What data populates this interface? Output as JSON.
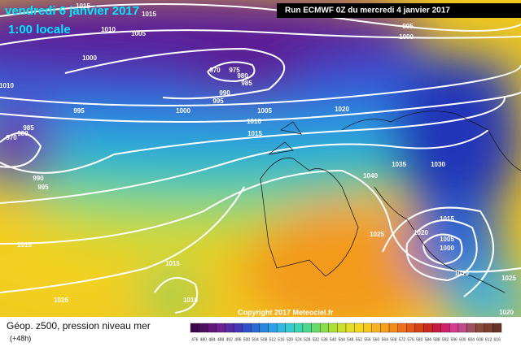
{
  "header": {
    "valid_date": "vendredi 6 janvier 2017",
    "local_time": "1:00 locale",
    "run": "Run ECMWF 0Z du mercredi 4 janvier 2017"
  },
  "footer": {
    "title": "Géop. z500, pression niveau mer",
    "lead": "(+48h)",
    "copyright": "Copyright 2017 Meteociel.fr"
  },
  "map": {
    "isobar_labels": [
      1015,
      1010,
      1005,
      1015,
      1000,
      1010,
      995,
      970,
      975,
      980,
      985,
      990,
      995,
      1000,
      1005,
      1010,
      1015,
      1020,
      985,
      980,
      970,
      990,
      995,
      1040,
      1035,
      1030,
      1025,
      1020,
      1015,
      1005,
      1000,
      1010,
      1015,
      1010,
      1025,
      1015,
      995,
      1000,
      1025,
      1020
    ]
  },
  "colorbar": {
    "labels": [
      476,
      480,
      484,
      488,
      492,
      496,
      500,
      504,
      508,
      512,
      516,
      520,
      524,
      528,
      532,
      536,
      540,
      544,
      548,
      552,
      556,
      560,
      564,
      568,
      572,
      576,
      580,
      584,
      588,
      592,
      596,
      600,
      604,
      608,
      612,
      616
    ]
  }
}
